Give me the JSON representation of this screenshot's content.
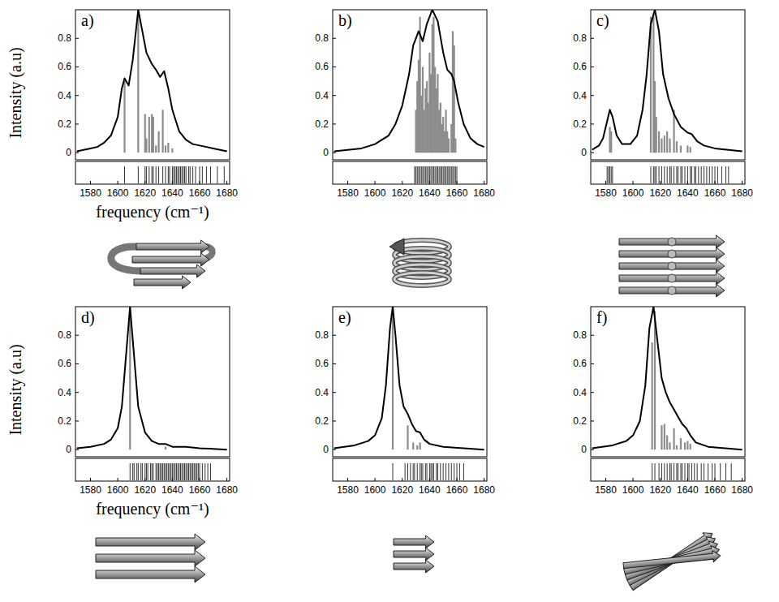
{
  "chart_data": [
    {
      "type": "line",
      "title": "a)",
      "ylabel": "Intensity (a.u)",
      "xlabel": "frequency (cm⁻¹)",
      "xlim": [
        1569,
        1682
      ],
      "xticks": [
        1580,
        1600,
        1620,
        1640,
        1660,
        1680
      ],
      "ylim": [
        -0.05,
        1.0
      ],
      "yticks": [
        0,
        0.2,
        0.4,
        0.6,
        0.8
      ],
      "grid": false,
      "series": [
        {
          "type": "bar",
          "color": "#8c8c8c",
          "x": [
            1605,
            1615,
            1620,
            1621,
            1623,
            1625,
            1626,
            1628,
            1630,
            1633,
            1635,
            1637,
            1640
          ],
          "values": [
            0.5,
            0.98,
            0.27,
            0.1,
            0.25,
            0.27,
            0.25,
            0.05,
            0.15,
            0.3,
            0.05,
            0.07,
            0.03
          ]
        },
        {
          "type": "line",
          "color": "#000000",
          "x": [
            1570,
            1575,
            1580,
            1585,
            1590,
            1595,
            1600,
            1603,
            1605,
            1608,
            1611,
            1615,
            1618,
            1621,
            1625,
            1628,
            1631,
            1634,
            1637,
            1640,
            1645,
            1650,
            1655,
            1660,
            1665,
            1670,
            1675,
            1680
          ],
          "values": [
            0.01,
            0.02,
            0.03,
            0.04,
            0.07,
            0.12,
            0.25,
            0.45,
            0.52,
            0.47,
            0.65,
            1.0,
            0.85,
            0.7,
            0.62,
            0.58,
            0.53,
            0.57,
            0.45,
            0.3,
            0.15,
            0.09,
            0.06,
            0.05,
            0.04,
            0.03,
            0.02,
            0.01
          ]
        },
        {
          "type": "rug",
          "color": "#333333",
          "x": [
            1605,
            1615,
            1620,
            1621,
            1623,
            1625,
            1626,
            1628,
            1630,
            1633,
            1635,
            1637,
            1638,
            1640,
            1641,
            1642,
            1643,
            1644,
            1645,
            1646,
            1647,
            1648,
            1649,
            1650,
            1652,
            1653,
            1655,
            1657,
            1660,
            1662,
            1665,
            1668,
            1673,
            1678
          ]
        }
      ]
    },
    {
      "type": "line",
      "title": "b)",
      "xlim": [
        1569,
        1682
      ],
      "xticks": [
        1580,
        1600,
        1620,
        1640,
        1660,
        1680
      ],
      "ylim": [
        -0.05,
        1.0
      ],
      "yticks": [
        0,
        0.2,
        0.4,
        0.6,
        0.8
      ],
      "grid": false,
      "series": [
        {
          "type": "bar",
          "color": "#8c8c8c",
          "x": [
            1630,
            1631,
            1632,
            1633,
            1634,
            1635,
            1636,
            1637,
            1638,
            1639,
            1640,
            1641,
            1642,
            1643,
            1644,
            1645,
            1646,
            1647,
            1648,
            1649,
            1650,
            1651,
            1652,
            1653,
            1654,
            1656,
            1657,
            1658,
            1659
          ],
          "values": [
            0.3,
            0.5,
            0.65,
            0.95,
            0.4,
            0.6,
            0.3,
            0.45,
            0.5,
            0.35,
            0.7,
            0.55,
            0.9,
            0.95,
            0.6,
            0.45,
            0.55,
            0.3,
            0.35,
            0.2,
            0.25,
            0.15,
            0.3,
            0.15,
            0.1,
            0.2,
            0.85,
            0.75,
            0.1
          ]
        },
        {
          "type": "line",
          "color": "#000000",
          "x": [
            1570,
            1580,
            1590,
            1600,
            1610,
            1615,
            1620,
            1625,
            1628,
            1632,
            1635,
            1638,
            1642,
            1646,
            1650,
            1653,
            1656,
            1658,
            1661,
            1665,
            1670,
            1675,
            1680
          ],
          "values": [
            0.01,
            0.02,
            0.03,
            0.06,
            0.12,
            0.2,
            0.33,
            0.55,
            0.75,
            0.85,
            0.78,
            0.9,
            1.0,
            0.92,
            0.7,
            0.58,
            0.55,
            0.5,
            0.35,
            0.2,
            0.1,
            0.06,
            0.04
          ]
        },
        {
          "type": "rug",
          "color": "#333333",
          "x": [
            1629,
            1630,
            1631,
            1632,
            1633,
            1634,
            1635,
            1636,
            1637,
            1638,
            1639,
            1640,
            1641,
            1642,
            1643,
            1644,
            1645,
            1646,
            1647,
            1648,
            1649,
            1650,
            1651,
            1652,
            1653,
            1654,
            1655,
            1656,
            1657,
            1658,
            1659,
            1660
          ]
        }
      ]
    },
    {
      "type": "line",
      "title": "c)",
      "xlim": [
        1569,
        1682
      ],
      "xticks": [
        1580,
        1600,
        1620,
        1640,
        1660,
        1680
      ],
      "ylim": [
        -0.05,
        1.0
      ],
      "yticks": [
        0,
        0.2,
        0.4,
        0.6,
        0.8
      ],
      "grid": false,
      "series": [
        {
          "type": "bar",
          "color": "#8c8c8c",
          "x": [
            1583,
            1584,
            1613,
            1615,
            1616,
            1617,
            1619,
            1621,
            1623,
            1625,
            1627,
            1630,
            1632,
            1635,
            1640,
            1642
          ],
          "values": [
            0.18,
            0.15,
            0.95,
            0.97,
            0.5,
            0.25,
            0.15,
            0.1,
            0.12,
            0.15,
            0.1,
            0.3,
            0.08,
            0.05,
            0.05,
            0.04
          ]
        },
        {
          "type": "line",
          "color": "#000000",
          "x": [
            1570,
            1575,
            1578,
            1581,
            1583,
            1585,
            1588,
            1592,
            1598,
            1603,
            1607,
            1610,
            1613,
            1616,
            1619,
            1622,
            1626,
            1630,
            1635,
            1640,
            1643,
            1647,
            1652,
            1660,
            1670,
            1680
          ],
          "values": [
            0.02,
            0.05,
            0.1,
            0.22,
            0.3,
            0.25,
            0.12,
            0.06,
            0.06,
            0.12,
            0.3,
            0.55,
            0.9,
            1.0,
            0.85,
            0.55,
            0.38,
            0.27,
            0.18,
            0.14,
            0.13,
            0.08,
            0.05,
            0.03,
            0.02,
            0.01
          ]
        },
        {
          "type": "rug",
          "color": "#333333",
          "x": [
            1581,
            1582,
            1583,
            1584,
            1585,
            1613,
            1615,
            1616,
            1617,
            1619,
            1621,
            1623,
            1625,
            1627,
            1628,
            1630,
            1632,
            1633,
            1635,
            1636,
            1638,
            1640,
            1642,
            1643,
            1645,
            1646,
            1648,
            1650,
            1652,
            1654,
            1656,
            1658,
            1660,
            1662,
            1665,
            1668,
            1670
          ]
        }
      ]
    },
    {
      "type": "line",
      "title": "d)",
      "ylabel": "Intensity (a.u)",
      "xlabel": "frequency (cm⁻¹)",
      "xlim": [
        1569,
        1682
      ],
      "xticks": [
        1580,
        1600,
        1620,
        1640,
        1660,
        1680
      ],
      "ylim": [
        -0.05,
        1.0
      ],
      "yticks": [
        0,
        0.2,
        0.4,
        0.6,
        0.8
      ],
      "grid": false,
      "series": [
        {
          "type": "bar",
          "color": "#8c8c8c",
          "x": [
            1609,
            1635
          ],
          "values": [
            0.98,
            0.02
          ]
        },
        {
          "type": "line",
          "color": "#000000",
          "x": [
            1570,
            1580,
            1590,
            1595,
            1600,
            1603,
            1606,
            1609,
            1612,
            1615,
            1620,
            1625,
            1630,
            1635,
            1640,
            1650,
            1660,
            1680
          ],
          "values": [
            0.01,
            0.02,
            0.04,
            0.07,
            0.15,
            0.3,
            0.65,
            1.0,
            0.65,
            0.3,
            0.12,
            0.06,
            0.04,
            0.04,
            0.02,
            0.02,
            0.01,
            0.0
          ]
        },
        {
          "type": "rug",
          "color": "#333333",
          "x": [
            1609,
            1611,
            1612,
            1614,
            1615,
            1617,
            1618,
            1620,
            1621,
            1622,
            1624,
            1625,
            1626,
            1628,
            1629,
            1630,
            1631,
            1632,
            1633,
            1634,
            1635,
            1636,
            1637,
            1638,
            1639,
            1640,
            1641,
            1642,
            1643,
            1644,
            1645,
            1646,
            1647,
            1648,
            1649,
            1650,
            1651,
            1652,
            1653,
            1654,
            1655,
            1656,
            1657,
            1658,
            1659,
            1660,
            1662,
            1664,
            1666,
            1668
          ]
        }
      ]
    },
    {
      "type": "line",
      "title": "e)",
      "xlim": [
        1569,
        1682
      ],
      "xticks": [
        1580,
        1600,
        1620,
        1640,
        1660,
        1680
      ],
      "ylim": [
        -0.05,
        1.0
      ],
      "yticks": [
        0,
        0.2,
        0.4,
        0.6,
        0.8
      ],
      "grid": false,
      "series": [
        {
          "type": "bar",
          "color": "#8c8c8c",
          "x": [
            1613,
            1624,
            1628,
            1631,
            1633
          ],
          "values": [
            0.98,
            0.17,
            0.05,
            0.03,
            0.05
          ]
        },
        {
          "type": "line",
          "color": "#000000",
          "x": [
            1570,
            1585,
            1595,
            1600,
            1605,
            1608,
            1611,
            1613,
            1615,
            1618,
            1621,
            1624,
            1627,
            1630,
            1633,
            1636,
            1640,
            1650,
            1665,
            1680
          ],
          "values": [
            0.01,
            0.03,
            0.06,
            0.1,
            0.22,
            0.45,
            0.85,
            1.0,
            0.8,
            0.45,
            0.3,
            0.25,
            0.18,
            0.13,
            0.12,
            0.07,
            0.04,
            0.02,
            0.01,
            0.0
          ]
        },
        {
          "type": "rug",
          "color": "#333333",
          "x": [
            1613,
            1622,
            1624,
            1626,
            1628,
            1629,
            1631,
            1633,
            1634,
            1635,
            1637,
            1638,
            1640,
            1641,
            1642,
            1643,
            1645,
            1646,
            1648,
            1650,
            1652,
            1654,
            1656,
            1658,
            1660,
            1662,
            1665
          ]
        }
      ]
    },
    {
      "type": "line",
      "title": "f)",
      "xlim": [
        1569,
        1682
      ],
      "xticks": [
        1580,
        1600,
        1620,
        1640,
        1660,
        1680
      ],
      "ylim": [
        -0.05,
        1.0
      ],
      "yticks": [
        0,
        0.2,
        0.4,
        0.6,
        0.8
      ],
      "grid": false,
      "series": [
        {
          "type": "bar",
          "color": "#8c8c8c",
          "x": [
            1614,
            1616,
            1621,
            1623,
            1625,
            1627,
            1630,
            1632,
            1635,
            1638,
            1640,
            1642
          ],
          "values": [
            0.75,
            0.97,
            0.17,
            0.18,
            0.1,
            0.05,
            0.15,
            0.03,
            0.08,
            0.05,
            0.06,
            0.04
          ]
        },
        {
          "type": "line",
          "color": "#000000",
          "x": [
            1570,
            1585,
            1595,
            1600,
            1605,
            1609,
            1612,
            1615,
            1618,
            1621,
            1624,
            1627,
            1630,
            1633,
            1636,
            1639,
            1642,
            1646,
            1655,
            1680
          ],
          "values": [
            0.01,
            0.03,
            0.06,
            0.1,
            0.2,
            0.45,
            0.85,
            1.0,
            0.75,
            0.5,
            0.4,
            0.33,
            0.28,
            0.23,
            0.18,
            0.15,
            0.1,
            0.05,
            0.02,
            0.0
          ]
        },
        {
          "type": "rug",
          "color": "#333333",
          "x": [
            1614,
            1616,
            1619,
            1621,
            1623,
            1625,
            1627,
            1628,
            1630,
            1632,
            1633,
            1635,
            1636,
            1638,
            1640,
            1641,
            1643,
            1645,
            1647,
            1650,
            1652,
            1655,
            1658,
            1660,
            1664,
            1668,
            1672
          ]
        }
      ]
    }
  ]
}
